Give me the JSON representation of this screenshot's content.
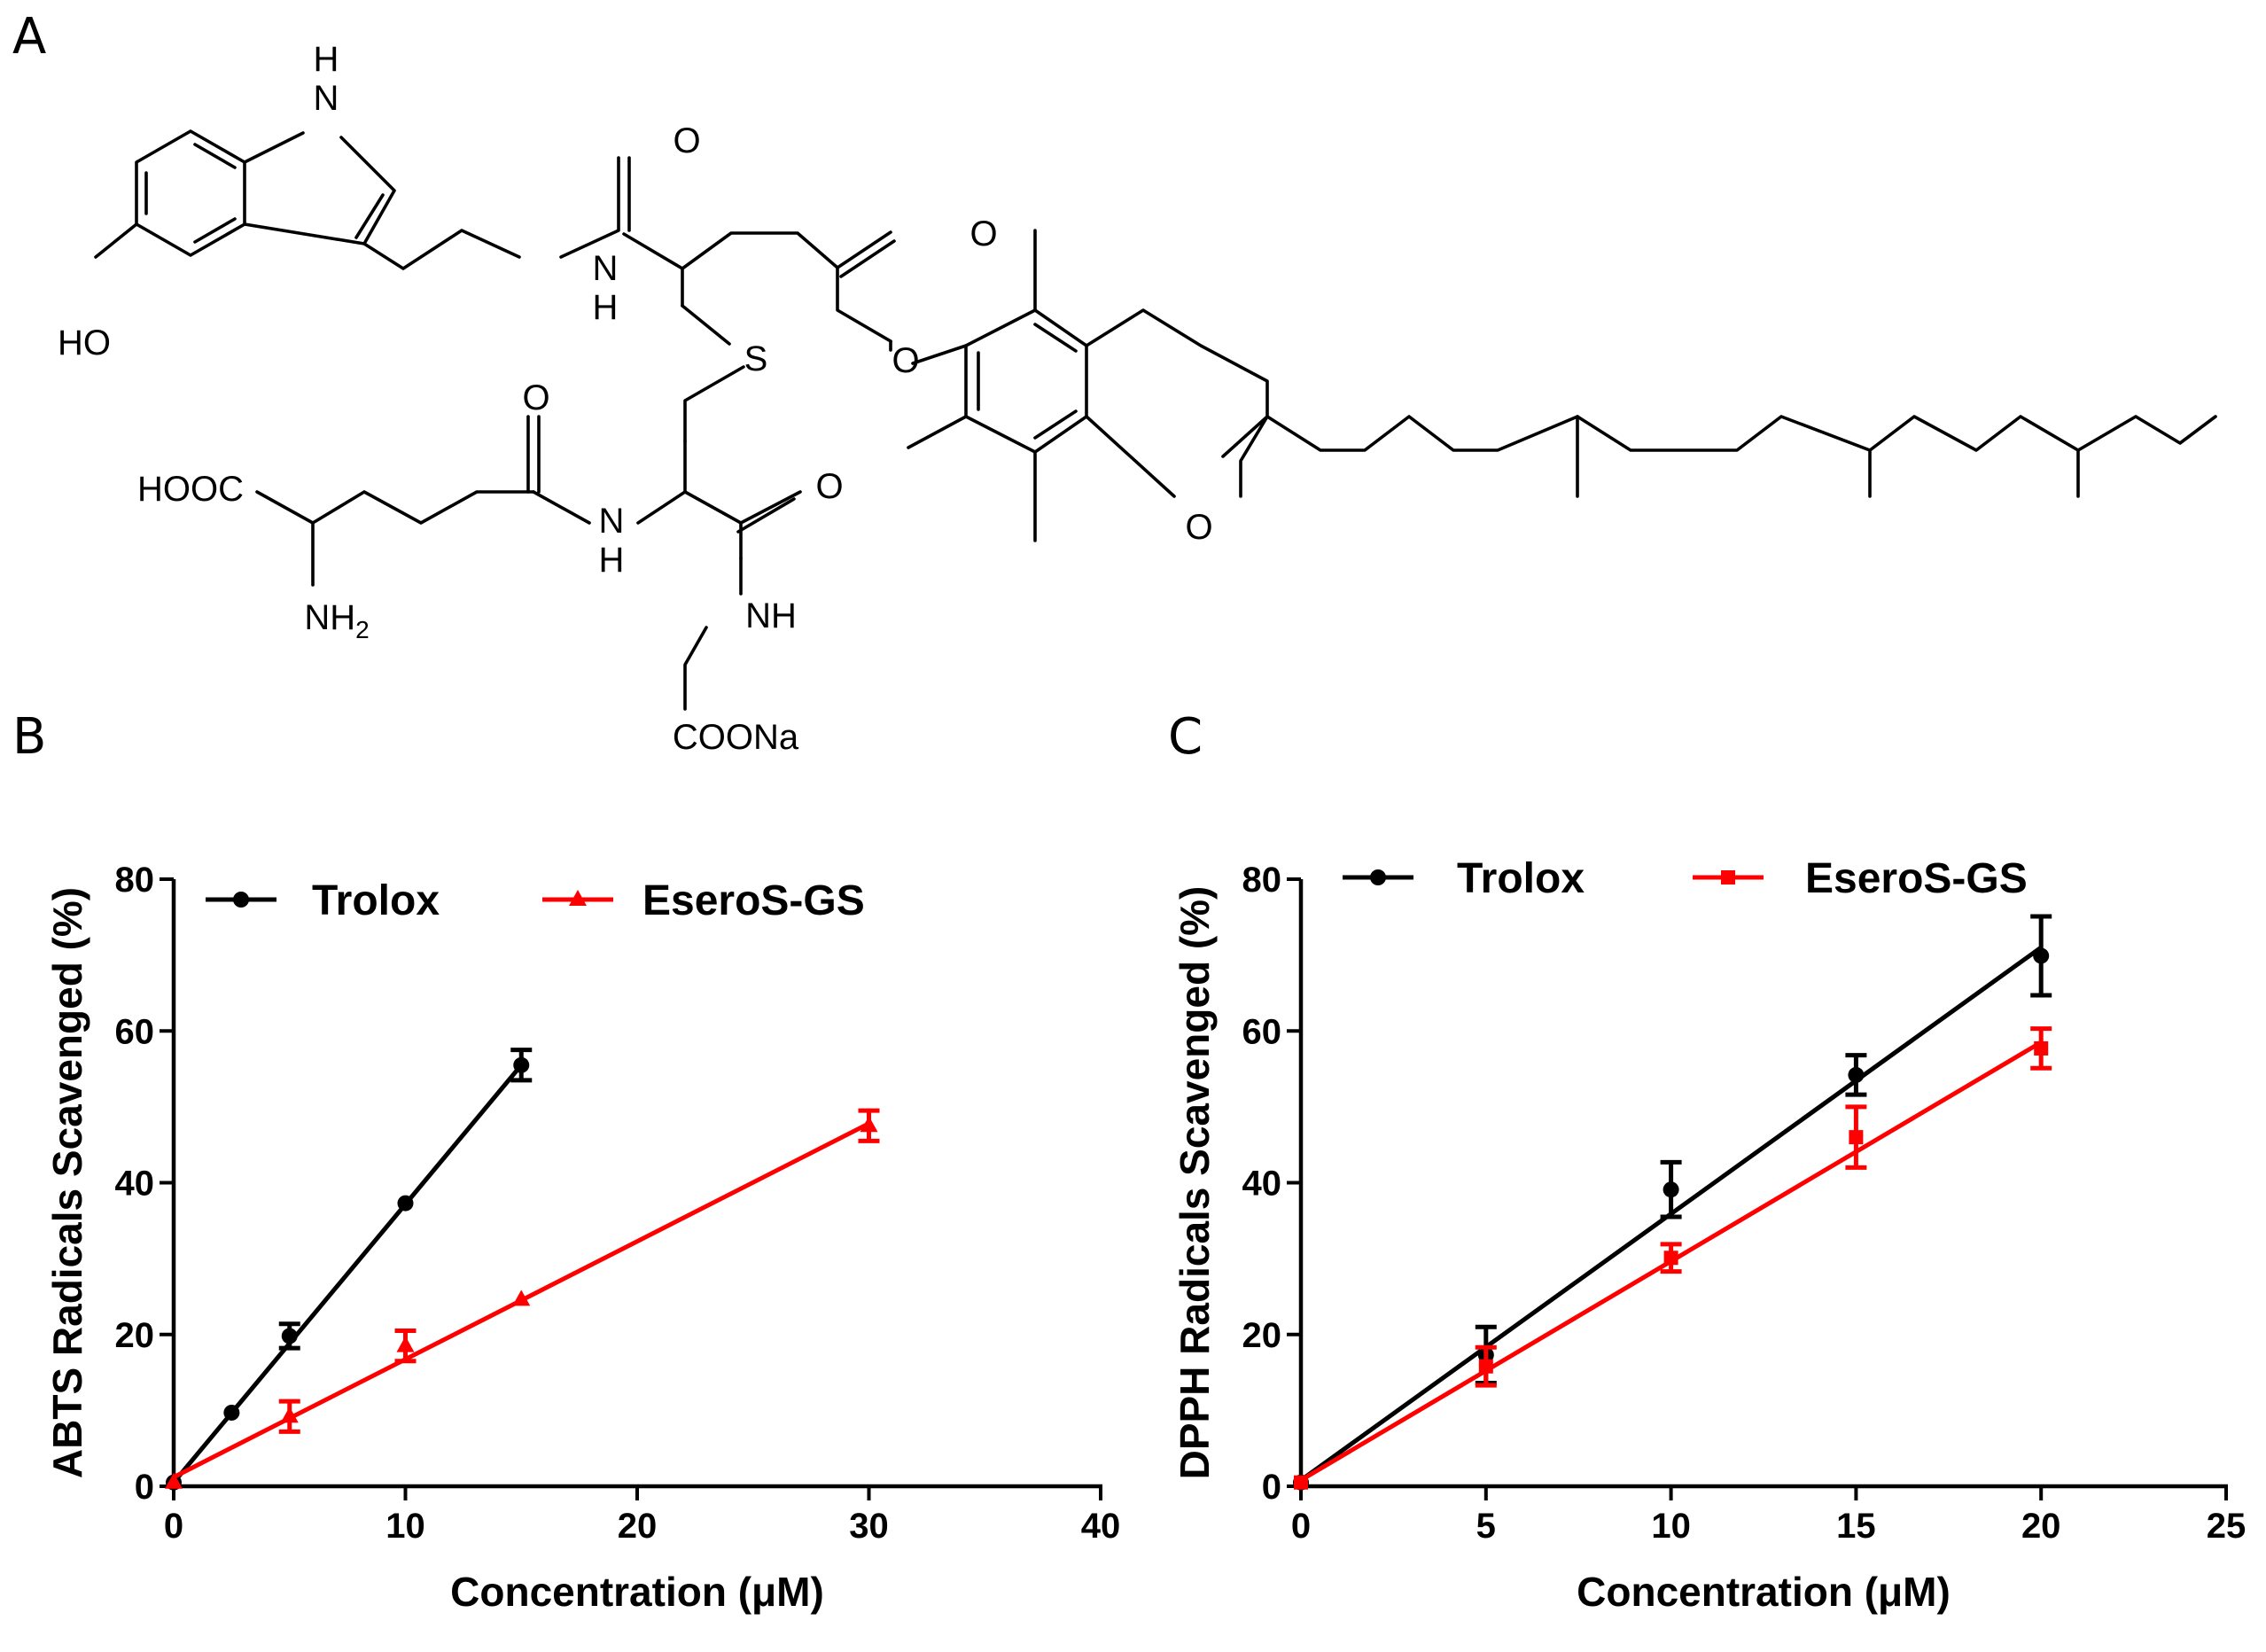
{
  "panels": {
    "a": "A",
    "b": "B",
    "c": "C"
  },
  "structure": {
    "labels": {
      "nh_indole_n": "N",
      "nh_indole_h": "H",
      "ho": "HO",
      "o_amide1": "O",
      "nh_amide1_n": "N",
      "nh_amide1_h": "H",
      "o_ester_carbonyl": "O",
      "o_ester": "O",
      "s": "S",
      "o_amide_gln": "O",
      "hooc": "HOOC",
      "nh2_base": "NH",
      "nh2_sub": "2",
      "nh_amide2_n": "N",
      "nh_amide2_h": "H",
      "o_amide3": "O",
      "nh_amide3": "NH",
      "coona": "COONa",
      "o_ring": "O"
    }
  },
  "chart_data": [
    {
      "id": "B",
      "type": "line",
      "xlabel": "Concentration (μM)",
      "ylabel": "ABTS Radicals Scavenged (%)",
      "xlim": [
        0,
        40
      ],
      "ylim": [
        0,
        80
      ],
      "xticks": [
        "0",
        "10",
        "20",
        "30",
        "40"
      ],
      "yticks": [
        "0",
        "20",
        "40",
        "60",
        "80"
      ],
      "legend_position": "top",
      "series": [
        {
          "name": "Trolox",
          "color": "#000000",
          "marker": "circle",
          "x": [
            0,
            2.5,
            5,
            10,
            15
          ],
          "y": [
            0.5,
            9.7,
            19.8,
            37.3,
            55.5
          ],
          "err": [
            0,
            0,
            1.6,
            0,
            2
          ],
          "fit": [
            [
              0,
              0.5
            ],
            [
              15,
              55.5
            ]
          ]
        },
        {
          "name": "EseroS-GS",
          "color": "#ff0000",
          "marker": "triangle",
          "x": [
            0,
            5,
            10,
            15,
            30
          ],
          "y": [
            0.5,
            9.2,
            18.5,
            24.6,
            47.5
          ],
          "err": [
            0,
            2,
            2,
            0,
            2
          ],
          "fit": [
            [
              0,
              1.2
            ],
            [
              30,
              47.8
            ]
          ]
        }
      ]
    },
    {
      "id": "C",
      "type": "line",
      "xlabel": "Concentration (μM)",
      "ylabel": "DPPH Radicals Scavenged (%)",
      "xlim": [
        0,
        25
      ],
      "ylim": [
        0,
        80
      ],
      "xticks": [
        "0",
        "5",
        "10",
        "15",
        "20",
        "25"
      ],
      "yticks": [
        "0",
        "20",
        "40",
        "60",
        "80"
      ],
      "legend_position": "top",
      "series": [
        {
          "name": "Trolox",
          "color": "#000000",
          "marker": "circle",
          "x": [
            0,
            5,
            10,
            15,
            20
          ],
          "y": [
            0.5,
            17.3,
            39.1,
            54.2,
            69.9
          ],
          "err": [
            0,
            3.7,
            3.6,
            2.6,
            5.2
          ],
          "fit": [
            [
              0,
              0.8
            ],
            [
              20,
              71
            ]
          ]
        },
        {
          "name": "EseroS-GS",
          "color": "#ff0000",
          "marker": "square",
          "x": [
            0,
            5,
            10,
            15,
            20
          ],
          "y": [
            0.5,
            15.8,
            30.1,
            46,
            57.7
          ],
          "err": [
            0,
            2.5,
            1.8,
            4,
            2.6
          ],
          "fit": [
            [
              0,
              0.8
            ],
            [
              20,
              58.5
            ]
          ]
        }
      ]
    }
  ]
}
